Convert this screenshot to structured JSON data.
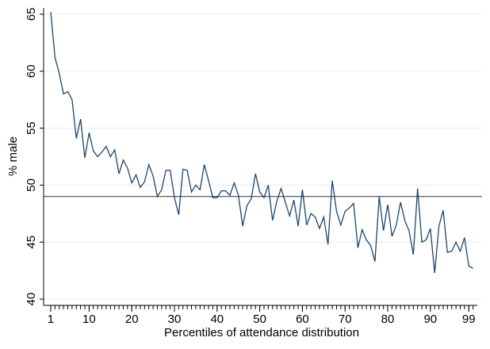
{
  "chart_data": {
    "type": "line",
    "xlabel": "Percentiles of attendance distribution",
    "ylabel": "% male",
    "x": [
      1,
      2,
      3,
      4,
      5,
      6,
      7,
      8,
      9,
      10,
      11,
      12,
      13,
      14,
      15,
      16,
      17,
      18,
      19,
      20,
      21,
      22,
      23,
      24,
      25,
      26,
      27,
      28,
      29,
      30,
      31,
      32,
      33,
      34,
      35,
      36,
      37,
      38,
      39,
      40,
      41,
      42,
      43,
      44,
      45,
      46,
      47,
      48,
      49,
      50,
      51,
      52,
      53,
      54,
      55,
      56,
      57,
      58,
      59,
      60,
      61,
      62,
      63,
      64,
      65,
      66,
      67,
      68,
      69,
      70,
      71,
      72,
      73,
      74,
      75,
      76,
      77,
      78,
      79,
      80,
      81,
      82,
      83,
      84,
      85,
      86,
      87,
      88,
      89,
      90,
      91,
      92,
      93,
      94,
      95,
      96,
      97,
      98,
      99,
      100
    ],
    "series": [
      {
        "name": "% male",
        "color": "#1a476f",
        "values": [
          65.2,
          61.2,
          59.8,
          58.0,
          58.2,
          57.5,
          54.1,
          55.8,
          52.4,
          54.6,
          53.0,
          52.5,
          52.9,
          53.4,
          52.5,
          53.1,
          51.0,
          52.2,
          51.5,
          50.2,
          50.9,
          49.8,
          50.3,
          51.8,
          50.8,
          49.0,
          49.6,
          51.3,
          51.3,
          48.9,
          47.4,
          51.4,
          51.3,
          49.4,
          50.0,
          49.6,
          51.8,
          50.4,
          48.9,
          48.9,
          49.5,
          49.5,
          49.1,
          50.2,
          49.1,
          46.4,
          48.2,
          48.8,
          51.0,
          49.4,
          48.9,
          50.0,
          46.9,
          48.6,
          49.7,
          48.5,
          47.3,
          48.7,
          46.4,
          49.6,
          46.5,
          47.5,
          47.2,
          46.2,
          47.2,
          44.8,
          50.4,
          47.7,
          46.5,
          47.7,
          48.0,
          48.4,
          44.5,
          46.1,
          45.2,
          44.7,
          43.3,
          49.0,
          46.0,
          48.3,
          45.5,
          46.5,
          48.5,
          46.9,
          46.0,
          43.9,
          49.7,
          45.0,
          45.2,
          46.2,
          42.3,
          46.4,
          47.8,
          44.1,
          44.2,
          45.0,
          44.2,
          45.4,
          42.9,
          42.7
        ]
      }
    ],
    "reference_line": 49,
    "xlim": [
      0,
      101
    ],
    "ylim": [
      39.45,
      65.55
    ],
    "xticks": [
      1,
      10,
      20,
      30,
      40,
      50,
      60,
      70,
      80,
      90,
      99
    ],
    "yticks": [
      40,
      45,
      50,
      55,
      60,
      65
    ],
    "grid": true
  }
}
